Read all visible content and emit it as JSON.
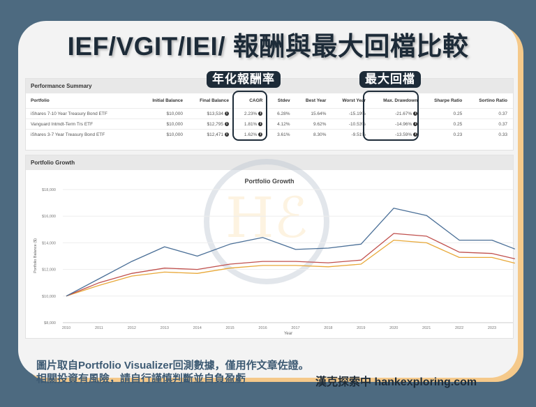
{
  "title": "IEF/VGIT/IEI/  報酬與最大回檔比較",
  "annotations": {
    "cagr_tag": "年化報酬率",
    "drawdown_tag": "最大回檔"
  },
  "performance_summary": {
    "header": "Performance Summary",
    "columns": [
      "Portfolio",
      "Initial Balance",
      "Final Balance",
      "CAGR",
      "Stdev",
      "Best Year",
      "Worst Year",
      "Max. Drawdown",
      "Sharpe Ratio",
      "Sortino Ratio"
    ],
    "rows": [
      {
        "portfolio": "iShares 7-10 Year Treasury Bond ETF",
        "initial": "$10,000",
        "final": "$13,534",
        "cagr": "2.23%",
        "stdev": "6.28%",
        "best": "15.64%",
        "worst": "-15.19%",
        "drawdown": "-21.67%",
        "sharpe": "0.25",
        "sortino": "0.37"
      },
      {
        "portfolio": "Vanguard Intmdt-Term Trs ETF",
        "initial": "$10,000",
        "final": "$12,795",
        "cagr": "1.81%",
        "stdev": "4.12%",
        "best": "9.62%",
        "worst": "-10.53%",
        "drawdown": "-14.96%",
        "sharpe": "0.25",
        "sortino": "0.37"
      },
      {
        "portfolio": "iShares 3-7 Year Treasury Bond ETF",
        "initial": "$10,000",
        "final": "$12,471",
        "cagr": "1.62%",
        "stdev": "3.61%",
        "best": "8.30%",
        "worst": "-9.51%",
        "drawdown": "-13.59%",
        "sharpe": "0.23",
        "sortino": "0.33"
      }
    ]
  },
  "portfolio_growth": {
    "header": "Portfolio Growth"
  },
  "chart_data": {
    "type": "line",
    "title": "Portfolio Growth",
    "xlabel": "Year",
    "ylabel": "Portfolio Balance ($)",
    "ylim": [
      8000,
      18000
    ],
    "yticks": [
      "$8,000",
      "$10,000",
      "$12,000",
      "$14,000",
      "$16,000",
      "$18,000"
    ],
    "x": [
      2010,
      2011,
      2012,
      2013,
      2014,
      2015,
      2016,
      2017,
      2018,
      2019,
      2020,
      2021,
      2022,
      2023,
      2023.7
    ],
    "xticks": [
      "2010",
      "2011",
      "2012",
      "2013",
      "2014",
      "2015",
      "2016",
      "2017",
      "2018",
      "2019",
      "2020",
      "2021",
      "2022",
      "2023"
    ],
    "grid": true,
    "series": [
      {
        "name": "iShares 7-10 Year Treasury Bond ETF",
        "color": "#4a6f97",
        "values": [
          10000,
          11300,
          12600,
          13700,
          13000,
          13900,
          14400,
          13500,
          13600,
          13900,
          16600,
          16050,
          14200,
          14200,
          13534
        ]
      },
      {
        "name": "Vanguard Intmdt-Term Trs ETF",
        "color": "#c0504d",
        "values": [
          10000,
          11000,
          11700,
          12100,
          12000,
          12400,
          12600,
          12600,
          12500,
          12700,
          14700,
          14500,
          13300,
          13200,
          12795
        ]
      },
      {
        "name": "iShares 3-7 Year Treasury Bond ETF",
        "color": "#e8a838",
        "values": [
          10000,
          10800,
          11500,
          11800,
          11700,
          12100,
          12300,
          12300,
          12200,
          12400,
          14200,
          14000,
          12900,
          12900,
          12471
        ]
      }
    ]
  },
  "footer": {
    "line1": "圖片取自Portfolio  Visualizer回測數據，僅用作文章佐證。",
    "line2": "相關投資有風險，請自行謹慎判斷並自負盈虧",
    "brand": "漢克探索中 hankexploring.com"
  },
  "colors": {
    "background": "#4d6a80",
    "card": "#f3f3f3",
    "card_shadow": "#f5c98a",
    "dark": "#1d2b38"
  }
}
